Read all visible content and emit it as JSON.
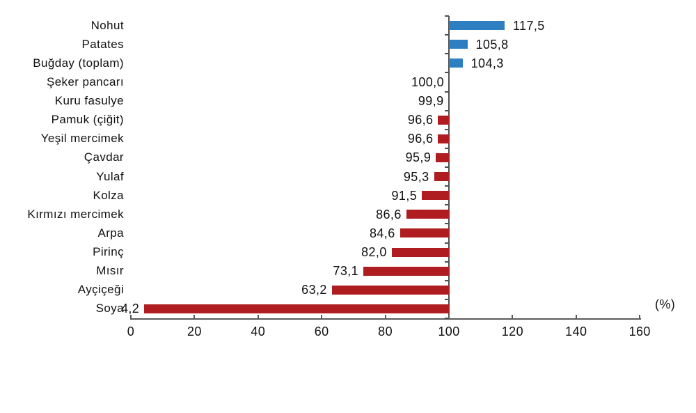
{
  "chart_data": {
    "type": "bar",
    "orientation": "horizontal",
    "title": "",
    "xlabel": "",
    "ylabel": "",
    "unit_label": "(%)",
    "baseline": 100,
    "xlim": [
      0,
      160
    ],
    "grid": false,
    "legend": false,
    "categories": [
      "Nohut",
      "Patates",
      "Buğday (toplam)",
      "Şeker pancarı",
      "Kuru fasulye",
      "Pamuk (çiğit)",
      "Yeşil mercimek",
      "Çavdar",
      "Yulaf",
      "Kolza",
      "Kırmızı mercimek",
      "Arpa",
      "Pirinç",
      "Mısır",
      "Ayçiçeği",
      "Soya"
    ],
    "values": [
      117.5,
      105.8,
      104.3,
      100.0,
      99.9,
      96.6,
      96.6,
      95.9,
      95.3,
      91.5,
      86.6,
      84.6,
      82.0,
      73.1,
      63.2,
      4.2
    ],
    "value_labels": [
      "117,5",
      "105,8",
      "104,3",
      "100,0",
      "99,9",
      "96,6",
      "96,6",
      "95,9",
      "95,3",
      "91,5",
      "86,6",
      "84,6",
      "82,0",
      "73,1",
      "63,2",
      "4,2"
    ],
    "xticks": [
      0,
      20,
      40,
      60,
      80,
      100,
      120,
      140,
      160
    ],
    "xtick_labels": [
      "0",
      "20",
      "40",
      "60",
      "80",
      "100",
      "120",
      "140",
      "160"
    ],
    "colors": {
      "above_baseline": "#2e7fc1",
      "below_baseline": "#b01d21",
      "axis": "#5a5a5a",
      "text": "#111111"
    }
  }
}
